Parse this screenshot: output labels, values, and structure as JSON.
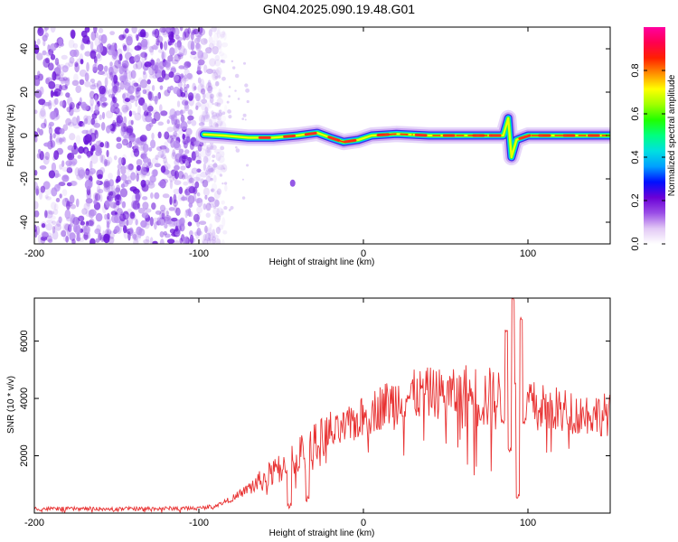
{
  "title": "GN04.2025.090.19.48.G01",
  "chart_data": [
    {
      "type": "heatmap",
      "name": "spectrogram",
      "xlabel": "Height of straight line (km)",
      "ylabel": "Frequency (Hz)",
      "xlim": [
        -200,
        150
      ],
      "ylim": [
        -50,
        50
      ],
      "xticks": [
        -200,
        -100,
        0,
        100
      ],
      "yticks": [
        -40,
        -20,
        0,
        20,
        40
      ],
      "colorbar": {
        "label": "Normalized spectral amplitude",
        "range": [
          0,
          1
        ],
        "ticks": [
          "0.0",
          "0.2",
          "0.4",
          "0.6",
          "0.8"
        ],
        "tick_values": [
          0,
          0.2,
          0.4,
          0.6,
          0.8
        ],
        "colors": [
          "#ffffff",
          "#e2c8f5",
          "#9a4de6",
          "#6b00d6",
          "#0010ff",
          "#00a0ff",
          "#00e0e0",
          "#00ff80",
          "#20ff00",
          "#a0ff00",
          "#ffff00",
          "#ff9000",
          "#ff2000",
          "#ff0050",
          "#ff00a0"
        ]
      },
      "noise_region": {
        "x_from": -200,
        "x_to": -90,
        "color": "#7b3fe0"
      },
      "ridge": [
        {
          "x": -97,
          "y": 0.5
        },
        {
          "x": -85,
          "y": 0
        },
        {
          "x": -70,
          "y": -1
        },
        {
          "x": -55,
          "y": -1
        },
        {
          "x": -40,
          "y": 0
        },
        {
          "x": -28,
          "y": 1.2
        },
        {
          "x": -20,
          "y": -1
        },
        {
          "x": -12,
          "y": -3
        },
        {
          "x": -3,
          "y": -2
        },
        {
          "x": 5,
          "y": 0
        },
        {
          "x": 20,
          "y": 0.7
        },
        {
          "x": 40,
          "y": 0
        },
        {
          "x": 60,
          "y": 0
        },
        {
          "x": 80,
          "y": 0
        },
        {
          "x": 85,
          "y": 0
        },
        {
          "x": 88,
          "y": 8
        },
        {
          "x": 90,
          "y": -10
        },
        {
          "x": 93,
          "y": -2
        },
        {
          "x": 100,
          "y": 0
        },
        {
          "x": 120,
          "y": 0
        },
        {
          "x": 150,
          "y": 0
        }
      ],
      "hotspots": [
        -60,
        -45,
        -32,
        -18,
        -8,
        12,
        35,
        52,
        70,
        80,
        98,
        110,
        125,
        140
      ],
      "outlier": {
        "x": -43,
        "y": -22
      }
    },
    {
      "type": "line",
      "name": "snr",
      "xlabel": "Height of straight line (km)",
      "ylabel": "SNR (10 * v/v)",
      "xlim": [
        -200,
        150
      ],
      "ylim": [
        0,
        7500
      ],
      "xticks": [
        -200,
        -100,
        0,
        100
      ],
      "yticks": [
        2000,
        4000,
        6000
      ],
      "color": "#e83232",
      "envelope": [
        {
          "x": -200,
          "y": 150
        },
        {
          "x": -150,
          "y": 150
        },
        {
          "x": -100,
          "y": 170
        },
        {
          "x": -90,
          "y": 250
        },
        {
          "x": -80,
          "y": 500
        },
        {
          "x": -70,
          "y": 850
        },
        {
          "x": -60,
          "y": 1200
        },
        {
          "x": -50,
          "y": 1600
        },
        {
          "x": -40,
          "y": 2000
        },
        {
          "x": -30,
          "y": 2300
        },
        {
          "x": -20,
          "y": 2700
        },
        {
          "x": -10,
          "y": 3000
        },
        {
          "x": 0,
          "y": 3350
        },
        {
          "x": 10,
          "y": 3700
        },
        {
          "x": 20,
          "y": 3950
        },
        {
          "x": 30,
          "y": 4100
        },
        {
          "x": 40,
          "y": 4200
        },
        {
          "x": 50,
          "y": 4150
        },
        {
          "x": 60,
          "y": 4100
        },
        {
          "x": 70,
          "y": 4050
        },
        {
          "x": 80,
          "y": 3950
        },
        {
          "x": 90,
          "y": 3950
        },
        {
          "x": 100,
          "y": 3850
        },
        {
          "x": 110,
          "y": 3700
        },
        {
          "x": 120,
          "y": 3600
        },
        {
          "x": 130,
          "y": 3500
        },
        {
          "x": 140,
          "y": 3450
        },
        {
          "x": 150,
          "y": 3450
        }
      ],
      "features": [
        {
          "x": 87,
          "y": 6300
        },
        {
          "x": 89,
          "y": 2200
        },
        {
          "x": 91,
          "y": 7500
        },
        {
          "x": 93,
          "y": 4500
        },
        {
          "x": 94,
          "y": 600
        },
        {
          "x": 96,
          "y": 6800
        },
        {
          "x": 98,
          "y": 3200
        },
        {
          "x": -45,
          "y": 250
        },
        {
          "x": -34,
          "y": 500
        }
      ]
    }
  ]
}
